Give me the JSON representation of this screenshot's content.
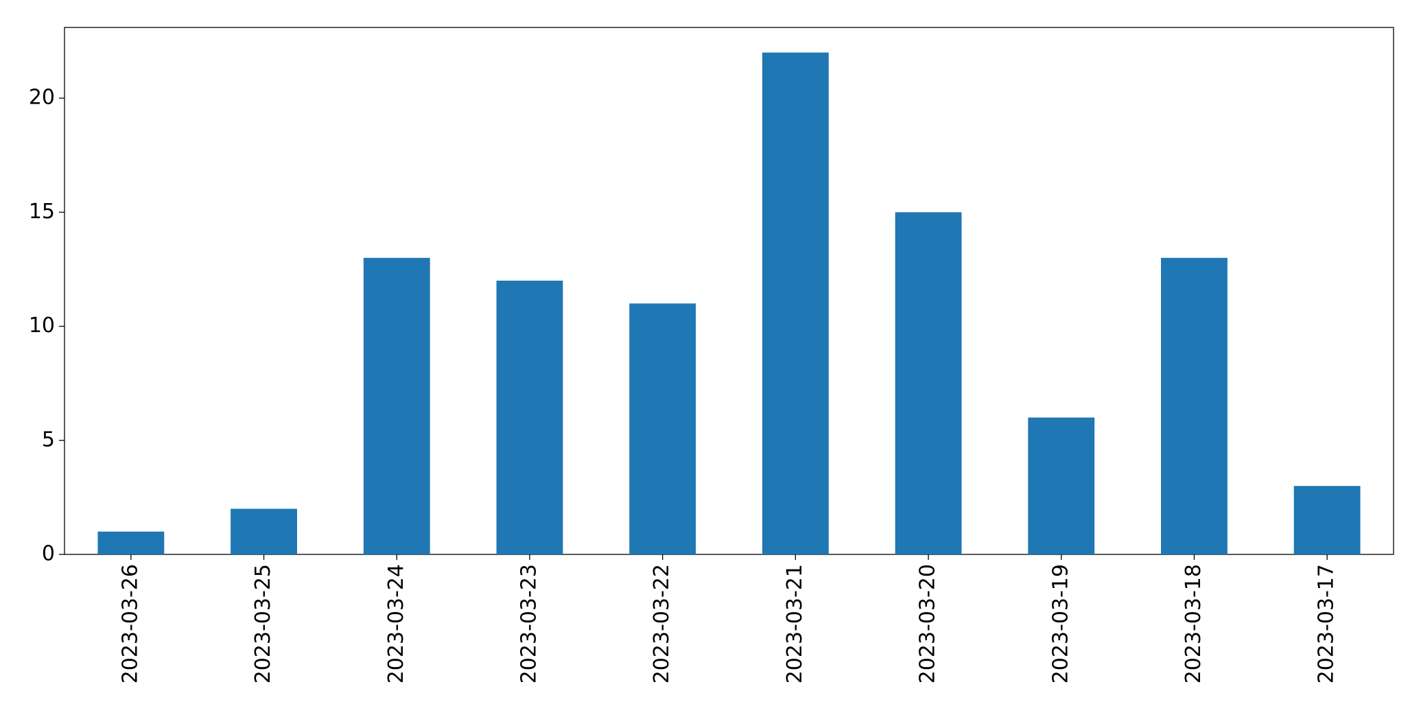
{
  "chart_data": {
    "type": "bar",
    "categories": [
      "2023-03-26",
      "2023-03-25",
      "2023-03-24",
      "2023-03-23",
      "2023-03-22",
      "2023-03-21",
      "2023-03-20",
      "2023-03-19",
      "2023-03-18",
      "2023-03-17"
    ],
    "values": [
      1,
      2,
      13,
      12,
      11,
      22,
      15,
      6,
      13,
      3
    ],
    "color": "#1f77b4",
    "ylim": [
      0,
      23.1
    ],
    "yticks": [
      0,
      5,
      10,
      15,
      20
    ],
    "grid": false
  }
}
